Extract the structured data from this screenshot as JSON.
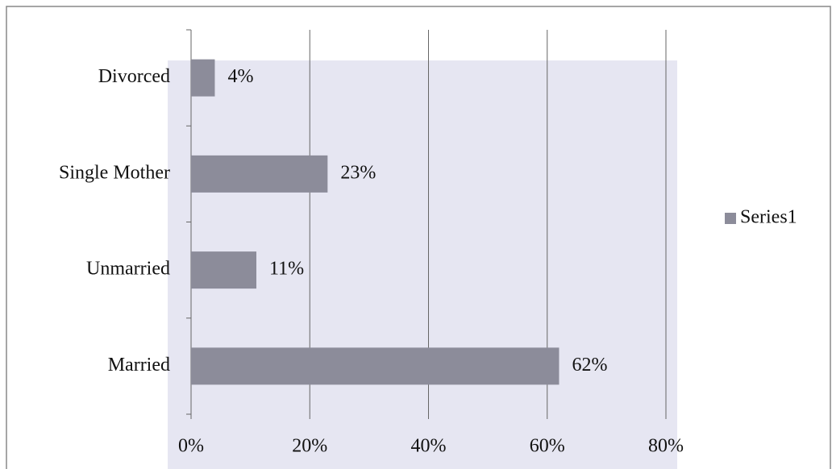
{
  "chart_data": {
    "type": "bar",
    "orientation": "horizontal",
    "categories": [
      "Divorced",
      "Single Mother",
      "Unmarried",
      "Married"
    ],
    "series": [
      {
        "name": "Series1",
        "color": "#8c8c9a",
        "values": [
          4,
          23,
          11,
          62
        ],
        "value_labels": [
          "4%",
          "23%",
          "11%",
          "62%"
        ]
      }
    ],
    "xlim": [
      0,
      80
    ],
    "xticks": [
      {
        "value": 0,
        "label": "0%"
      },
      {
        "value": 20,
        "label": "20%"
      },
      {
        "value": 40,
        "label": "40%"
      },
      {
        "value": 60,
        "label": "60%"
      },
      {
        "value": 80,
        "label": "80%"
      }
    ],
    "grid": true,
    "legend": "right"
  }
}
